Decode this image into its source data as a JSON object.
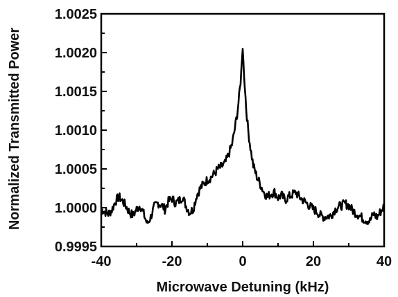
{
  "chart_data": {
    "type": "line",
    "title": "",
    "xlabel": "Microwave Detuning (kHz)",
    "ylabel": "Normalized Transmitted Power",
    "xlim": [
      -40,
      40
    ],
    "ylim": [
      0.9995,
      1.0025
    ],
    "x_ticks": [
      -40,
      -20,
      0,
      20,
      40
    ],
    "x_tick_labels": [
      "-40",
      "-20",
      "0",
      "20",
      "40"
    ],
    "y_ticks": [
      0.9995,
      1.0,
      1.0005,
      1.001,
      1.0015,
      1.002,
      1.0025
    ],
    "y_tick_labels": [
      "0.9995",
      "1.0000",
      "1.0005",
      "1.0010",
      "1.0015",
      "1.0020",
      "1.0025"
    ],
    "grid": false,
    "legend": "none",
    "line_color": "#000000",
    "series": [
      {
        "x": [
          -40,
          -39,
          -38,
          -37,
          -36,
          -35,
          -34,
          -33,
          -32,
          -31,
          -30,
          -29,
          -28,
          -27,
          -26,
          -25,
          -24,
          -23,
          -22,
          -21,
          -20,
          -19,
          -18,
          -17,
          -16,
          -15,
          -14,
          -13,
          -12,
          -11,
          -10,
          -9,
          -8,
          -7,
          -6,
          -5,
          -4,
          -3,
          -2.5,
          -2,
          -1.5,
          -1,
          -0.5,
          0,
          0.5,
          1,
          1.5,
          2,
          2.5,
          3,
          4,
          5,
          6,
          7,
          8,
          9,
          10,
          11,
          12,
          13,
          14,
          15,
          16,
          17,
          18,
          19,
          20,
          21,
          22,
          23,
          24,
          25,
          26,
          27,
          28,
          29,
          30,
          31,
          32,
          33,
          34,
          35,
          36,
          37,
          38,
          39,
          40
        ],
        "y": [
          0.99998,
          0.99995,
          0.99992,
          0.99997,
          1.00008,
          1.00014,
          1.00009,
          1.00002,
          0.99994,
          0.9999,
          0.99998,
          1.00003,
          0.99992,
          0.99979,
          0.99988,
          1.00001,
          1.00006,
          1.00004,
          0.99998,
          1.00008,
          1.00012,
          1.00006,
          1.00009,
          1.00014,
          1.00002,
          0.99994,
          0.99998,
          1.00016,
          1.00025,
          1.00031,
          1.00036,
          1.00039,
          1.00044,
          1.0005,
          1.00053,
          1.00057,
          1.00068,
          1.00082,
          1.00094,
          1.00108,
          1.00123,
          1.00143,
          1.00168,
          1.00205,
          1.00165,
          1.00128,
          1.00102,
          1.00084,
          1.00068,
          1.00054,
          1.0004,
          1.0003,
          1.0002,
          1.00014,
          1.00018,
          1.0002,
          1.00013,
          1.00016,
          1.0001,
          1.00014,
          1.00017,
          1.0002,
          1.00014,
          1.0001,
          1.00006,
          1.00002,
          0.99998,
          0.99995,
          0.9999,
          0.99988,
          0.99989,
          0.9999,
          0.99997,
          1.00001,
          1.00003,
          1.00005,
          1.00003,
          0.99997,
          0.99993,
          0.9999,
          0.99986,
          0.99984,
          0.99983,
          0.99992,
          0.99988,
          0.99995,
          1.00002
        ]
      }
    ]
  }
}
